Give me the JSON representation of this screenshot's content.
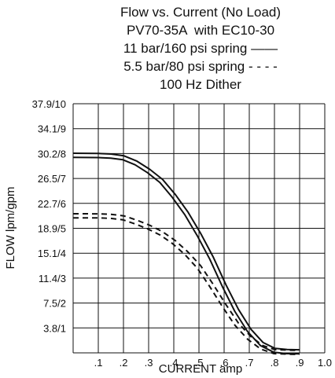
{
  "chart_data": {
    "type": "line",
    "title_lines": [
      "Flow vs. Current (No Load)",
      "PV70-35A  with EC10-30",
      "11 bar/160 psi spring ——",
      "5.5 bar/80 psi spring - - - -",
      "100 Hz Dither"
    ],
    "xlabel": "CURRENT amp",
    "ylabel": "FLOW lpm/gpm",
    "xlim": [
      0,
      1.0
    ],
    "ylim": [
      0,
      10
    ],
    "x_tick_labels": [
      ".1",
      ".2",
      ".3",
      ".4",
      ".5",
      ".6",
      ".7",
      ".8",
      ".9",
      "1.0"
    ],
    "y_tick_labels": [
      "3.8/1",
      "7.5/2",
      "11.4/3",
      "15.1/4",
      "18.9/5",
      "22.7/6",
      "26.5/7",
      "30.2/8",
      "34.1/9",
      "37.9/10"
    ],
    "grid": true,
    "series": [
      {
        "name": "11 bar/160 psi spring",
        "style": "solid",
        "x": [
          0,
          0.1,
          0.15,
          0.2,
          0.25,
          0.3,
          0.35,
          0.4,
          0.45,
          0.5,
          0.55,
          0.6,
          0.65,
          0.7,
          0.75,
          0.8,
          0.85,
          0.9
        ],
        "y": [
          7.93,
          7.92,
          7.9,
          7.83,
          7.62,
          7.3,
          6.9,
          6.3,
          5.6,
          4.75,
          3.8,
          2.7,
          1.7,
          0.9,
          0.35,
          0.1,
          0.05,
          0.04
        ]
      },
      {
        "name": "5.5 bar/80 psi spring",
        "style": "dashed",
        "x": [
          0,
          0.1,
          0.15,
          0.2,
          0.25,
          0.3,
          0.35,
          0.4,
          0.45,
          0.5,
          0.55,
          0.6,
          0.65,
          0.7,
          0.75,
          0.8,
          0.85,
          0.9
        ],
        "y": [
          5.5,
          5.5,
          5.48,
          5.42,
          5.25,
          5.05,
          4.8,
          4.45,
          4.0,
          3.45,
          2.7,
          1.9,
          1.15,
          0.6,
          0.22,
          0.05,
          0.03,
          0.02
        ]
      }
    ]
  }
}
